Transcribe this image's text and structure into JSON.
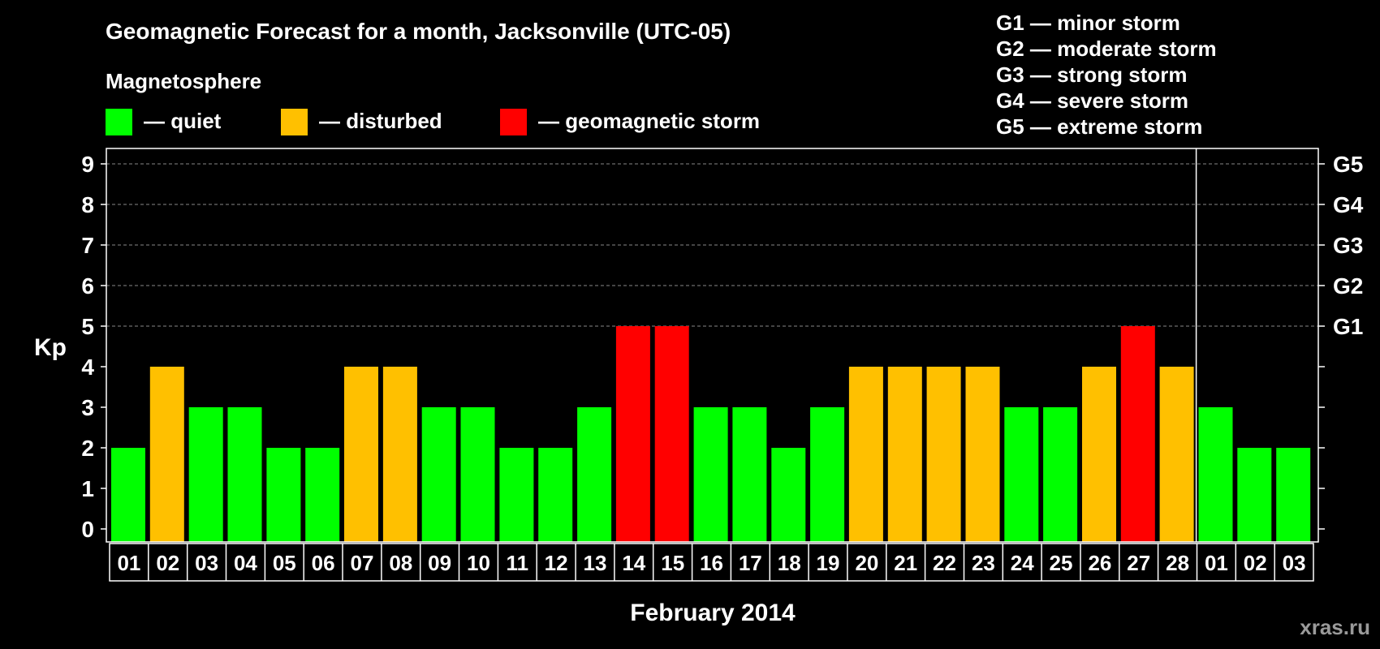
{
  "title": "Geomagnetic Forecast for a month, Jacksonville (UTC-05)",
  "magnetosphere_label": "Magnetosphere",
  "legend": [
    {
      "label": "— quiet",
      "color": "#00ff00"
    },
    {
      "label": "— disturbed",
      "color": "#ffc000"
    },
    {
      "label": "— geomagnetic storm",
      "color": "#ff0000"
    }
  ],
  "g_scale": [
    "G1 — minor storm",
    "G2 — moderate storm",
    "G3 — strong storm",
    "G4 — severe storm",
    "G5 — extreme storm"
  ],
  "watermark": "xras.ru",
  "colors": {
    "quiet": "#00ff00",
    "disturbed": "#ffc000",
    "storm": "#ff0000",
    "background": "#000000",
    "axis": "#ffffff",
    "grid": "#888888"
  },
  "chart_data": {
    "type": "bar",
    "title": "Geomagnetic Forecast for a month, Jacksonville (UTC-05)",
    "xlabel": "February 2014",
    "ylabel": "Kp",
    "ylim": [
      0,
      9
    ],
    "yticks": [
      "0",
      "1",
      "2",
      "3",
      "4",
      "5",
      "6",
      "7",
      "8",
      "9"
    ],
    "right_ticks": [
      {
        "kp": 5,
        "label": "G1"
      },
      {
        "kp": 6,
        "label": "G2"
      },
      {
        "kp": 7,
        "label": "G3"
      },
      {
        "kp": 8,
        "label": "G4"
      },
      {
        "kp": 9,
        "label": "G5"
      }
    ],
    "categories": [
      "01",
      "02",
      "03",
      "04",
      "05",
      "06",
      "07",
      "08",
      "09",
      "10",
      "11",
      "12",
      "13",
      "14",
      "15",
      "16",
      "17",
      "18",
      "19",
      "20",
      "21",
      "22",
      "23",
      "24",
      "25",
      "26",
      "27",
      "28",
      "01",
      "02",
      "03"
    ],
    "values": [
      2,
      4,
      3,
      3,
      2,
      2,
      4,
      4,
      3,
      3,
      2,
      2,
      3,
      5,
      5,
      3,
      3,
      2,
      3,
      4,
      4,
      4,
      4,
      3,
      3,
      4,
      5,
      4,
      3,
      2,
      2
    ],
    "month_separator_after_index": 27
  }
}
